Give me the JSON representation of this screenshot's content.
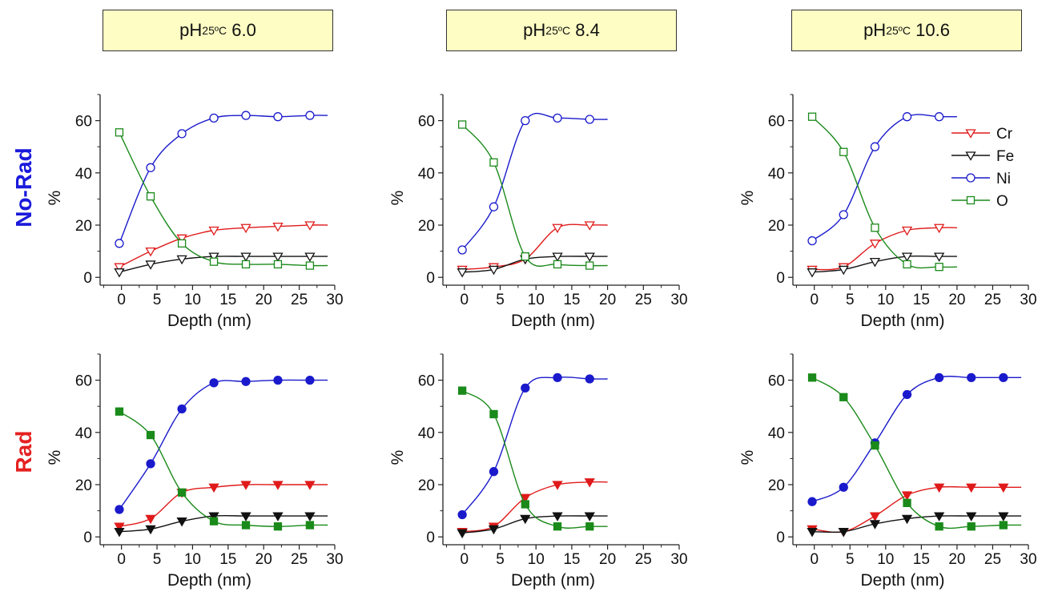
{
  "columns": [
    {
      "label_main": "pH",
      "label_sub": "25ºC",
      "label_value": "6.0"
    },
    {
      "label_main": "pH",
      "label_sub": "25ºC",
      "label_value": "8.4"
    },
    {
      "label_main": "pH",
      "label_sub": "25ºC",
      "label_value": "10.6"
    }
  ],
  "rows": [
    {
      "label": "No-Rad",
      "color": "#1a1adb",
      "marker_fill": "open"
    },
    {
      "label": "Rad",
      "color": "#e52020",
      "marker_fill": "filled"
    }
  ],
  "colors": {
    "Cr": "#e01a1a",
    "Fe": "#111111",
    "Ni": "#1a1acc",
    "O": "#1a8a1a"
  },
  "legend": [
    {
      "name": "Cr",
      "marker": "triangle-down"
    },
    {
      "name": "Fe",
      "marker": "triangle-down"
    },
    {
      "name": "Ni",
      "marker": "circle"
    },
    {
      "name": "O",
      "marker": "square"
    }
  ],
  "chart_data": [
    {
      "type": "line",
      "id": "norad-ph6.0",
      "xlabel": "Depth (nm)",
      "ylabel": "%",
      "xlim": [
        -3,
        30
      ],
      "ylim": [
        -3,
        70
      ],
      "xticks": [
        0,
        5,
        10,
        15,
        20,
        25,
        30
      ],
      "yticks": [
        0,
        20,
        40,
        60
      ],
      "series": [
        {
          "name": "Cr",
          "x": [
            -0.3,
            4.1,
            8.5,
            13,
            17.5,
            22,
            26.5
          ],
          "y": [
            4,
            10,
            15,
            18,
            19,
            19.5,
            20
          ]
        },
        {
          "name": "Fe",
          "x": [
            -0.3,
            4.1,
            8.5,
            13,
            17.5,
            22,
            26.5
          ],
          "y": [
            2,
            5,
            7,
            8,
            8,
            8,
            8
          ]
        },
        {
          "name": "Ni",
          "x": [
            -0.3,
            4.1,
            8.5,
            13,
            17.5,
            22,
            26.5
          ],
          "y": [
            13,
            42,
            55,
            61,
            62,
            61.5,
            62
          ]
        },
        {
          "name": "O",
          "x": [
            -0.3,
            4.1,
            8.5,
            13,
            17.5,
            22,
            26.5
          ],
          "y": [
            55.5,
            31,
            13,
            6,
            5,
            5,
            4.5
          ]
        }
      ]
    },
    {
      "type": "line",
      "id": "norad-ph8.4",
      "xlabel": "Depth (nm)",
      "ylabel": "%",
      "xlim": [
        -3,
        30
      ],
      "ylim": [
        -3,
        70
      ],
      "xticks": [
        0,
        5,
        10,
        15,
        20,
        25,
        30
      ],
      "yticks": [
        0,
        20,
        40,
        60
      ],
      "series": [
        {
          "name": "Cr",
          "x": [
            -0.3,
            4.1,
            8.5,
            13,
            17.5
          ],
          "y": [
            3,
            4,
            7,
            19,
            20
          ]
        },
        {
          "name": "Fe",
          "x": [
            -0.3,
            4.1,
            8.5,
            13,
            17.5
          ],
          "y": [
            2,
            3,
            7,
            8,
            8
          ]
        },
        {
          "name": "Ni",
          "x": [
            -0.3,
            4.1,
            8.5,
            13,
            17.5
          ],
          "y": [
            10.5,
            27,
            60,
            61,
            60.5
          ]
        },
        {
          "name": "O",
          "x": [
            -0.3,
            4.1,
            8.5,
            13,
            17.5
          ],
          "y": [
            58.5,
            44,
            8,
            5,
            4.5
          ]
        }
      ]
    },
    {
      "type": "line",
      "id": "norad-ph10.6",
      "xlabel": "Depth (nm)",
      "ylabel": "%",
      "xlim": [
        -3,
        30
      ],
      "ylim": [
        -3,
        70
      ],
      "xticks": [
        0,
        5,
        10,
        15,
        20,
        25,
        30
      ],
      "yticks": [
        0,
        20,
        40,
        60
      ],
      "series": [
        {
          "name": "Cr",
          "x": [
            -0.3,
            4.1,
            8.5,
            13,
            17.5
          ],
          "y": [
            3,
            4,
            13,
            18,
            19
          ]
        },
        {
          "name": "Fe",
          "x": [
            -0.3,
            4.1,
            8.5,
            13,
            17.5
          ],
          "y": [
            2,
            3,
            6,
            8,
            8
          ]
        },
        {
          "name": "Ni",
          "x": [
            -0.3,
            4.1,
            8.5,
            13,
            17.5
          ],
          "y": [
            14,
            24,
            50,
            61.5,
            61.5
          ]
        },
        {
          "name": "O",
          "x": [
            -0.3,
            4.1,
            8.5,
            13,
            17.5
          ],
          "y": [
            61.5,
            48,
            19,
            5,
            4
          ]
        }
      ]
    },
    {
      "type": "line",
      "id": "rad-ph6.0",
      "xlabel": "Depth (nm)",
      "ylabel": "%",
      "xlim": [
        -3,
        30
      ],
      "ylim": [
        -3,
        70
      ],
      "xticks": [
        0,
        5,
        10,
        15,
        20,
        25,
        30
      ],
      "yticks": [
        0,
        20,
        40,
        60
      ],
      "series": [
        {
          "name": "Cr",
          "x": [
            -0.3,
            4.1,
            8.5,
            13,
            17.5,
            22,
            26.5
          ],
          "y": [
            4,
            7,
            17,
            19,
            20,
            20,
            20
          ]
        },
        {
          "name": "Fe",
          "x": [
            -0.3,
            4.1,
            8.5,
            13,
            17.5,
            22,
            26.5
          ],
          "y": [
            2,
            3,
            6,
            8,
            8,
            8,
            8
          ]
        },
        {
          "name": "Ni",
          "x": [
            -0.3,
            4.1,
            8.5,
            13,
            17.5,
            22,
            26.5
          ],
          "y": [
            10.5,
            28,
            49,
            59,
            59.5,
            60,
            60
          ]
        },
        {
          "name": "O",
          "x": [
            -0.3,
            4.1,
            8.5,
            13,
            17.5,
            22,
            26.5
          ],
          "y": [
            48,
            39,
            17,
            6,
            4.5,
            4,
            4.5
          ]
        }
      ]
    },
    {
      "type": "line",
      "id": "rad-ph8.4",
      "xlabel": "Depth (nm)",
      "ylabel": "%",
      "xlim": [
        -3,
        30
      ],
      "ylim": [
        -3,
        70
      ],
      "xticks": [
        0,
        5,
        10,
        15,
        20,
        25,
        30
      ],
      "yticks": [
        0,
        20,
        40,
        60
      ],
      "series": [
        {
          "name": "Cr",
          "x": [
            -0.3,
            4.1,
            8.5,
            13,
            17.5
          ],
          "y": [
            2,
            4,
            15,
            20,
            21
          ]
        },
        {
          "name": "Fe",
          "x": [
            -0.3,
            4.1,
            8.5,
            13,
            17.5
          ],
          "y": [
            1.5,
            3,
            7,
            8,
            8
          ]
        },
        {
          "name": "Ni",
          "x": [
            -0.3,
            4.1,
            8.5,
            13,
            17.5
          ],
          "y": [
            8.5,
            25,
            57,
            61,
            60.5
          ]
        },
        {
          "name": "O",
          "x": [
            -0.3,
            4.1,
            8.5,
            13,
            17.5
          ],
          "y": [
            56,
            47,
            12.5,
            4,
            4
          ]
        }
      ]
    },
    {
      "type": "line",
      "id": "rad-ph10.6",
      "xlabel": "Depth (nm)",
      "ylabel": "%",
      "xlim": [
        -3,
        30
      ],
      "ylim": [
        -3,
        70
      ],
      "xticks": [
        0,
        5,
        10,
        15,
        20,
        25,
        30
      ],
      "yticks": [
        0,
        20,
        40,
        60
      ],
      "series": [
        {
          "name": "Cr",
          "x": [
            -0.3,
            4.1,
            8.5,
            13,
            17.5,
            22,
            26.5
          ],
          "y": [
            3,
            2,
            8,
            16,
            19,
            19,
            19
          ]
        },
        {
          "name": "Fe",
          "x": [
            -0.3,
            4.1,
            8.5,
            13,
            17.5,
            22,
            26.5
          ],
          "y": [
            2,
            2,
            5,
            7,
            8,
            8,
            8
          ]
        },
        {
          "name": "Ni",
          "x": [
            -0.3,
            4.1,
            8.5,
            13,
            17.5,
            22,
            26.5
          ],
          "y": [
            13.5,
            19,
            36,
            54.5,
            61,
            61,
            61
          ]
        },
        {
          "name": "O",
          "x": [
            -0.3,
            4.1,
            8.5,
            13,
            17.5,
            22,
            26.5
          ],
          "y": [
            61,
            53.5,
            35,
            13,
            4,
            4,
            4.5
          ]
        }
      ]
    }
  ]
}
